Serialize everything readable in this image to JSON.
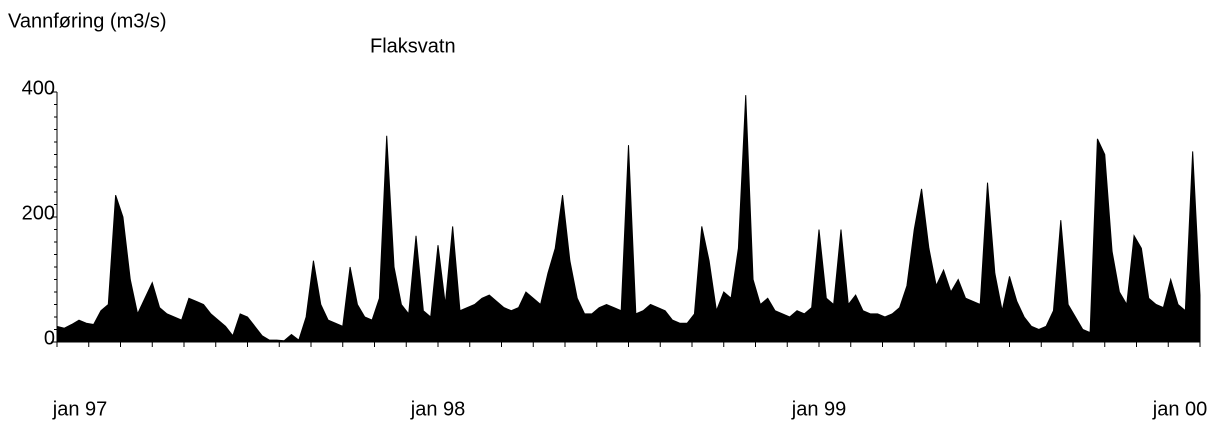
{
  "chart_data": {
    "type": "area",
    "title": "Flaksvatn",
    "ylabel": "Vannføring (m3/s)",
    "categories": [
      "jan 97",
      null,
      null,
      null,
      null,
      null,
      null,
      null,
      null,
      null,
      null,
      null,
      null,
      null,
      null,
      null,
      null,
      null,
      null,
      null,
      null,
      null,
      null,
      null,
      null,
      null,
      null,
      null,
      null,
      null,
      null,
      null,
      null,
      null,
      null,
      null,
      null,
      null,
      null,
      null,
      null,
      null,
      null,
      null,
      null,
      null,
      null,
      null,
      null,
      null,
      null,
      null,
      "jan 98",
      null,
      null,
      null,
      null,
      null,
      null,
      null,
      null,
      null,
      null,
      null,
      null,
      null,
      null,
      null,
      null,
      null,
      null,
      null,
      null,
      null,
      null,
      null,
      null,
      null,
      null,
      null,
      null,
      null,
      null,
      null,
      null,
      null,
      null,
      null,
      null,
      null,
      null,
      null,
      null,
      null,
      null,
      null,
      null,
      null,
      null,
      null,
      null,
      null,
      null,
      null,
      "jan 99",
      null,
      null,
      null,
      null,
      null,
      null,
      null,
      null,
      null,
      null,
      null,
      null,
      null,
      null,
      null,
      null,
      null,
      null,
      null,
      null,
      null,
      null,
      null,
      null,
      null,
      null,
      null,
      null,
      null,
      null,
      null,
      null,
      null,
      null,
      null,
      null,
      null,
      null,
      null,
      null,
      null,
      null,
      null,
      null,
      null,
      null,
      null,
      null,
      null,
      null,
      null,
      "jan 00"
    ],
    "values": [
      25,
      22,
      28,
      35,
      30,
      28,
      50,
      60,
      235,
      200,
      100,
      45,
      70,
      95,
      55,
      45,
      40,
      35,
      70,
      65,
      60,
      45,
      35,
      25,
      10,
      45,
      40,
      25,
      10,
      3,
      3,
      2,
      12,
      3,
      40,
      130,
      60,
      35,
      30,
      25,
      120,
      60,
      40,
      35,
      70,
      330,
      120,
      60,
      45,
      170,
      50,
      40,
      155,
      60,
      185,
      50,
      55,
      60,
      70,
      75,
      65,
      55,
      50,
      55,
      80,
      70,
      60,
      110,
      150,
      235,
      130,
      70,
      45,
      45,
      55,
      60,
      55,
      50,
      315,
      45,
      50,
      60,
      55,
      50,
      35,
      30,
      30,
      45,
      185,
      130,
      50,
      80,
      70,
      150,
      395,
      100,
      60,
      70,
      50,
      45,
      40,
      50,
      45,
      55,
      180,
      70,
      60,
      180,
      60,
      75,
      50,
      45,
      45,
      40,
      45,
      55,
      90,
      180,
      245,
      150,
      90,
      115,
      80,
      100,
      70,
      65,
      60,
      255,
      110,
      50,
      105,
      65,
      40,
      25,
      20,
      25,
      50,
      195,
      60,
      40,
      20,
      15,
      325,
      300,
      145,
      80,
      60,
      170,
      150,
      70,
      60,
      55,
      100,
      60,
      50,
      305,
      75
    ],
    "color": "#000000",
    "ylim": [
      0,
      400
    ],
    "yticks": [
      0,
      200,
      400
    ]
  }
}
